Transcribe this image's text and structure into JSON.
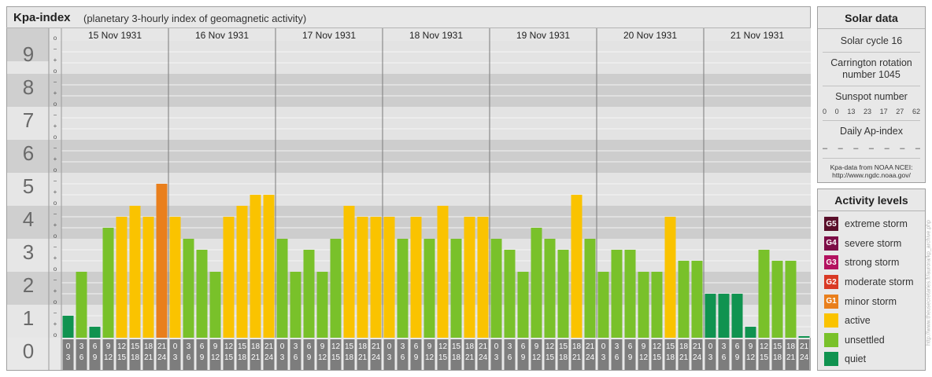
{
  "header": {
    "title": "Kpa-index",
    "subtitle": "(planetary 3-hourly index of geomagnetic activity)"
  },
  "chart_data": {
    "type": "bar",
    "ylim": [
      0,
      9
    ],
    "y_ticks": [
      "0",
      "1",
      "2",
      "3",
      "4",
      "5",
      "6",
      "7",
      "8",
      "9"
    ],
    "minor_tick_symbols": [
      "+",
      "o",
      "−"
    ],
    "days": [
      "15 Nov 1931",
      "16 Nov 1931",
      "17 Nov 1931",
      "18 Nov 1931",
      "19 Nov 1931",
      "20 Nov 1931",
      "21 Nov 1931"
    ],
    "hour_start_labels": [
      "0",
      "3",
      "6",
      "9",
      "12",
      "15",
      "18",
      "21"
    ],
    "hour_end_labels": [
      "3",
      "6",
      "9",
      "12",
      "15",
      "18",
      "21",
      "24"
    ],
    "values": [
      0.667,
      2.0,
      0.333,
      3.333,
      3.667,
      4.0,
      3.667,
      4.667,
      3.667,
      3.0,
      2.667,
      2.0,
      3.667,
      4.0,
      4.333,
      4.333,
      3.0,
      2.0,
      2.667,
      2.0,
      3.0,
      4.0,
      3.667,
      3.667,
      3.667,
      3.0,
      3.667,
      3.0,
      4.0,
      3.0,
      3.667,
      3.667,
      3.0,
      2.667,
      2.0,
      3.333,
      3.0,
      2.667,
      4.333,
      3.0,
      2.0,
      2.667,
      2.667,
      2.0,
      2.0,
      3.667,
      2.333,
      2.333,
      1.333,
      1.333,
      1.333,
      0.333,
      2.667,
      2.333,
      2.333,
      0.0
    ],
    "colors": {
      "quiet": "#109350",
      "unsettled": "#79c12a",
      "active": "#fac300",
      "minor": "#e97f1c"
    }
  },
  "solar": {
    "heading": "Solar data",
    "cycle": "Solar cycle 16",
    "carrington_line1": "Carrington rotation",
    "carrington_line2": "number 1045",
    "sunspot_label": "Sunspot number",
    "sunspot_values": [
      "0",
      "0",
      "13",
      "23",
      "17",
      "27",
      "62"
    ],
    "ap_label": "Daily Ap-index",
    "ap_values": [
      "–",
      "–",
      "–",
      "–",
      "–",
      "–",
      "–"
    ],
    "credit_line1": "Kpa-data from NOAA NCEI:",
    "credit_line2": "http://www.ngdc.noaa.gov/"
  },
  "levels": {
    "heading": "Activity levels",
    "items": [
      {
        "code": "G5",
        "label": "extreme storm",
        "color": "#5a0f2a"
      },
      {
        "code": "G4",
        "label": "severe storm",
        "color": "#7d0d47"
      },
      {
        "code": "G3",
        "label": "strong storm",
        "color": "#b3115f"
      },
      {
        "code": "G2",
        "label": "moderate storm",
        "color": "#d93a25"
      },
      {
        "code": "G1",
        "label": "minor storm",
        "color": "#e97f1c"
      },
      {
        "code": "",
        "label": "active",
        "color": "#fac300"
      },
      {
        "code": "",
        "label": "unsettled",
        "color": "#79c12a"
      },
      {
        "code": "",
        "label": "quiet",
        "color": "#109350"
      }
    ]
  },
  "watermark": "http://www.theusecretaries.fr/aurora/kp_archive.php"
}
